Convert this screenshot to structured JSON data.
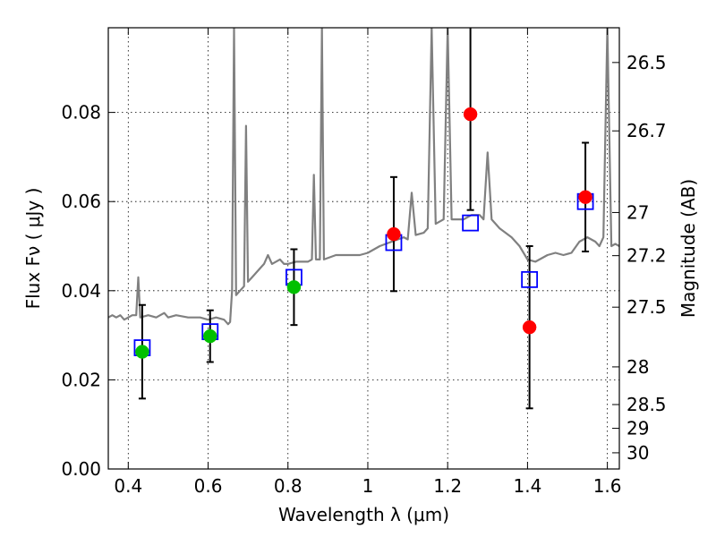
{
  "chart_data": {
    "type": "scatter",
    "title": "",
    "xlabel": "Wavelength  λ (μm)",
    "ylabel": "Flux  Fν  ( μJy )",
    "y2label": "Magnitude (AB)",
    "xlim": [
      0.35,
      1.63
    ],
    "ylim": [
      0.0,
      0.099
    ],
    "grid": true,
    "x_ticks": [
      0.4,
      0.6,
      0.8,
      1.0,
      1.2,
      1.4,
      1.6
    ],
    "x_tick_labels": [
      "0.4",
      "0.6",
      "0.8",
      "1",
      "1.2",
      "1.4",
      "1.6"
    ],
    "y_ticks": [
      0.0,
      0.02,
      0.04,
      0.06,
      0.08
    ],
    "y_tick_labels": [
      "0.00",
      "0.02",
      "0.04",
      "0.06",
      "0.08"
    ],
    "mag_ticks": [
      26.5,
      26.7,
      27,
      27.2,
      27.5,
      28,
      28.5,
      29,
      30
    ],
    "mag_tick_labels": [
      "26.5",
      "26.7",
      "27",
      "27.2",
      "27.5",
      "28",
      "28.5",
      "29",
      "30"
    ],
    "colors": {
      "template": "#808080",
      "model": "#0000ff",
      "green": "#00c000",
      "red": "#ff0000",
      "error": "#000000"
    },
    "series": [
      {
        "type": "line",
        "color": "#808080",
        "points": [
          [
            0.35,
            0.034
          ],
          [
            0.36,
            0.0345
          ],
          [
            0.37,
            0.034
          ],
          [
            0.38,
            0.0345
          ],
          [
            0.39,
            0.0335
          ],
          [
            0.4,
            0.034
          ],
          [
            0.41,
            0.0345
          ],
          [
            0.42,
            0.0345
          ],
          [
            0.425,
            0.043
          ],
          [
            0.43,
            0.034
          ],
          [
            0.45,
            0.0345
          ],
          [
            0.47,
            0.034
          ],
          [
            0.49,
            0.035
          ],
          [
            0.5,
            0.034
          ],
          [
            0.52,
            0.0345
          ],
          [
            0.55,
            0.034
          ],
          [
            0.58,
            0.034
          ],
          [
            0.6,
            0.0335
          ],
          [
            0.62,
            0.034
          ],
          [
            0.64,
            0.0335
          ],
          [
            0.65,
            0.0325
          ],
          [
            0.655,
            0.033
          ],
          [
            0.66,
            0.04
          ],
          [
            0.665,
            0.099
          ],
          [
            0.67,
            0.039
          ],
          [
            0.68,
            0.04
          ],
          [
            0.69,
            0.041
          ],
          [
            0.695,
            0.077
          ],
          [
            0.7,
            0.042
          ],
          [
            0.71,
            0.043
          ],
          [
            0.73,
            0.045
          ],
          [
            0.74,
            0.046
          ],
          [
            0.75,
            0.048
          ],
          [
            0.76,
            0.046
          ],
          [
            0.78,
            0.047
          ],
          [
            0.79,
            0.046
          ],
          [
            0.8,
            0.046
          ],
          [
            0.82,
            0.0465
          ],
          [
            0.85,
            0.0465
          ],
          [
            0.86,
            0.047
          ],
          [
            0.865,
            0.066
          ],
          [
            0.87,
            0.047
          ],
          [
            0.88,
            0.047
          ],
          [
            0.885,
            0.099
          ],
          [
            0.89,
            0.047
          ],
          [
            0.92,
            0.048
          ],
          [
            0.95,
            0.048
          ],
          [
            0.98,
            0.048
          ],
          [
            1.0,
            0.0485
          ],
          [
            1.03,
            0.05
          ],
          [
            1.06,
            0.051
          ],
          [
            1.09,
            0.052
          ],
          [
            1.1,
            0.0515
          ],
          [
            1.11,
            0.062
          ],
          [
            1.12,
            0.0525
          ],
          [
            1.14,
            0.053
          ],
          [
            1.15,
            0.054
          ],
          [
            1.16,
            0.099
          ],
          [
            1.17,
            0.055
          ],
          [
            1.19,
            0.056
          ],
          [
            1.2,
            0.099
          ],
          [
            1.21,
            0.056
          ],
          [
            1.24,
            0.056
          ],
          [
            1.26,
            0.057
          ],
          [
            1.28,
            0.057
          ],
          [
            1.29,
            0.056
          ],
          [
            1.3,
            0.071
          ],
          [
            1.31,
            0.056
          ],
          [
            1.33,
            0.054
          ],
          [
            1.36,
            0.052
          ],
          [
            1.38,
            0.05
          ],
          [
            1.4,
            0.047
          ],
          [
            1.42,
            0.0465
          ],
          [
            1.45,
            0.048
          ],
          [
            1.47,
            0.0485
          ],
          [
            1.49,
            0.048
          ],
          [
            1.51,
            0.0485
          ],
          [
            1.53,
            0.051
          ],
          [
            1.55,
            0.052
          ],
          [
            1.57,
            0.051
          ],
          [
            1.58,
            0.05
          ],
          [
            1.59,
            0.052
          ],
          [
            1.6,
            0.099
          ],
          [
            1.61,
            0.05
          ],
          [
            1.62,
            0.0505
          ],
          [
            1.63,
            0.05
          ]
        ]
      },
      {
        "type": "scatter",
        "marker": "open-square",
        "color": "#0000ff",
        "x": [
          0.435,
          0.605,
          0.815,
          1.065,
          1.257,
          1.405,
          1.545
        ],
        "y": [
          0.0272,
          0.0308,
          0.043,
          0.0508,
          0.0552,
          0.0425,
          0.06
        ]
      },
      {
        "type": "scatter",
        "marker": "filled-circle",
        "color": "#00c000",
        "x": [
          0.435,
          0.605,
          0.815
        ],
        "y": [
          0.0263,
          0.0298,
          0.0408
        ],
        "yerr": [
          0.0105,
          0.0058,
          0.0085
        ]
      },
      {
        "type": "scatter",
        "marker": "filled-circle",
        "color": "#ff0000",
        "x": [
          1.065,
          1.257,
          1.405,
          1.545
        ],
        "y": [
          0.0527,
          0.0796,
          0.0318,
          0.061
        ],
        "yerr": [
          0.0128,
          0.0215,
          0.0182,
          0.0122
        ]
      }
    ]
  }
}
